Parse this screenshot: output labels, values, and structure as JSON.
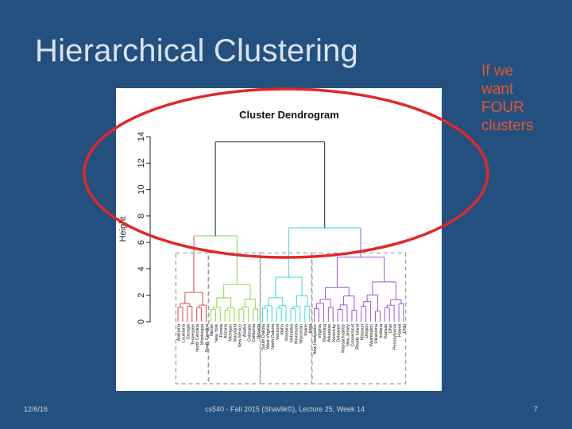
{
  "slide": {
    "title": "Hierarchical Clustering",
    "note_lines": [
      "If we",
      "want",
      "FOUR",
      "clusters"
    ],
    "footer_date": "12/6/16",
    "footer_course": "cs540 - Fall 2015 (Shavlik©), Lecture 25, Week 14",
    "page_number": "7"
  },
  "dendrogram": {
    "title": "Cluster Dendrogram",
    "ylabel": "Height",
    "y_ticks": [
      "0",
      "2",
      "4",
      "6",
      "8",
      "10",
      "12",
      "14"
    ],
    "ylim": [
      0,
      14
    ],
    "root_height": 13.6,
    "cut_height": 5.2,
    "cluster_colors": [
      "#e0474c",
      "#8ad83f",
      "#3fd6e0",
      "#9b55d8"
    ],
    "highlight_color": "#e02828",
    "clusters": [
      {
        "height": 6.5,
        "leaves": [
          "Alabama",
          "Louisiana",
          "Georgia",
          "Tennessee",
          "North Carolina",
          "Mississippi",
          "South Carolina"
        ]
      },
      {
        "height": 6.5,
        "leaves": [
          "Illinois",
          "New York",
          "Florida",
          "Arizona",
          "Michigan",
          "Maryland",
          "New Mexico",
          "Alaska",
          "Colorado",
          "California",
          "Nevada"
        ]
      },
      {
        "height": 7.1,
        "leaves": [
          "South Dakota",
          "West Virginia",
          "North Dakota",
          "Vermont",
          "Idaho",
          "Montana",
          "Nebraska",
          "Minnesota",
          "Wisconsin",
          "Maine",
          "Iowa"
        ]
      },
      {
        "height": 7.1,
        "leaves": [
          "New Hampshire",
          "Virginia",
          "Wyoming",
          "Arkansas",
          "Kentucky",
          "Delaware",
          "Massachusetts",
          "New Jersey",
          "Connecticut",
          "Rhode Island",
          "Missouri",
          "Oregon",
          "Washington",
          "Oklahoma",
          "Indiana",
          "Kansas",
          "Ohio",
          "Pennsylvania",
          "Hawaii",
          "Utah"
        ]
      }
    ]
  }
}
